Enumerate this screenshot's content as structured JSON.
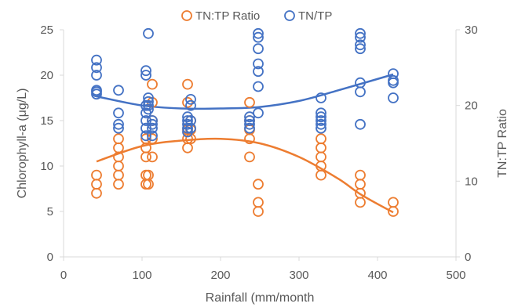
{
  "chart_data": {
    "type": "scatter",
    "xlabel": "Rainfall (mm/month",
    "ylabel": "Chlorophyll-a (μg/L)",
    "y2label": "TN:TP Ratio",
    "xlim": [
      0,
      500
    ],
    "ylim": [
      0,
      25
    ],
    "y2lim": [
      0,
      30
    ],
    "xticks": [
      "0",
      "100",
      "200",
      "300",
      "400",
      "500"
    ],
    "yticks": [
      "0",
      "5",
      "10",
      "15",
      "20",
      "25"
    ],
    "y2ticks": [
      "0",
      "10",
      "20",
      "30"
    ],
    "grid": false,
    "legend_position": "top",
    "series": [
      {
        "name": "TN:TP Ratio",
        "axis": "left",
        "color": "#ED7D31",
        "marker": "hollow-circle",
        "trendline": "polynomial",
        "trend_points": [
          [
            42,
            10.5
          ],
          [
            100,
            12.2
          ],
          [
            150,
            12.8
          ],
          [
            200,
            13.0
          ],
          [
            250,
            12.5
          ],
          [
            300,
            11.0
          ],
          [
            350,
            8.6
          ],
          [
            380,
            6.8
          ],
          [
            420,
            4.9
          ]
        ],
        "points": [
          [
            42,
            7
          ],
          [
            42,
            8
          ],
          [
            42,
            9
          ],
          [
            70,
            8
          ],
          [
            70,
            9
          ],
          [
            70,
            10
          ],
          [
            70,
            11
          ],
          [
            70,
            12
          ],
          [
            70,
            13
          ],
          [
            105,
            8
          ],
          [
            105,
            9
          ],
          [
            105,
            11
          ],
          [
            105,
            12
          ],
          [
            105,
            13
          ],
          [
            108,
            8
          ],
          [
            108,
            9
          ],
          [
            113,
            11
          ],
          [
            113,
            13
          ],
          [
            113,
            15
          ],
          [
            113,
            17
          ],
          [
            113,
            19
          ],
          [
            158,
            12
          ],
          [
            158,
            13
          ],
          [
            158,
            14
          ],
          [
            158,
            17
          ],
          [
            158,
            19
          ],
          [
            162,
            13
          ],
          [
            162,
            14
          ],
          [
            162,
            15
          ],
          [
            237,
            11
          ],
          [
            237,
            13
          ],
          [
            237,
            14
          ],
          [
            237,
            15
          ],
          [
            237,
            17
          ],
          [
            248,
            5
          ],
          [
            248,
            6
          ],
          [
            248,
            8
          ],
          [
            328,
            9
          ],
          [
            328,
            10
          ],
          [
            328,
            11
          ],
          [
            328,
            12
          ],
          [
            328,
            13
          ],
          [
            378,
            6
          ],
          [
            378,
            7
          ],
          [
            378,
            8
          ],
          [
            378,
            9
          ],
          [
            420,
            5
          ],
          [
            420,
            6
          ]
        ]
      },
      {
        "name": "TN/TP",
        "axis": "right",
        "color": "#4472C4",
        "marker": "hollow-circle",
        "trendline": "polynomial",
        "trend_points": [
          [
            42,
            21.2
          ],
          [
            100,
            20.0
          ],
          [
            150,
            19.6
          ],
          [
            200,
            19.6
          ],
          [
            250,
            19.8
          ],
          [
            300,
            20.6
          ],
          [
            350,
            22.0
          ],
          [
            420,
            24.1
          ]
        ],
        "points": [
          [
            42,
            21.5
          ],
          [
            42,
            21.8
          ],
          [
            42,
            22.0
          ],
          [
            42,
            24.0
          ],
          [
            42,
            25.0
          ],
          [
            42,
            26.0
          ],
          [
            70,
            17.0
          ],
          [
            70,
            17.5
          ],
          [
            70,
            19.0
          ],
          [
            70,
            22.0
          ],
          [
            105,
            16.0
          ],
          [
            105,
            17.0
          ],
          [
            105,
            18.0
          ],
          [
            105,
            19.0
          ],
          [
            105,
            20.0
          ],
          [
            105,
            24.0
          ],
          [
            105,
            24.6
          ],
          [
            108,
            19.5
          ],
          [
            108,
            20.0
          ],
          [
            108,
            20.5
          ],
          [
            108,
            21.0
          ],
          [
            108,
            29.5
          ],
          [
            113,
            16.0
          ],
          [
            113,
            17.0
          ],
          [
            113,
            17.5
          ],
          [
            113,
            18.0
          ],
          [
            158,
            16.5
          ],
          [
            158,
            17.0
          ],
          [
            158,
            17.5
          ],
          [
            158,
            18.0
          ],
          [
            158,
            18.5
          ],
          [
            162,
            17.0
          ],
          [
            162,
            18.0
          ],
          [
            162,
            20.0
          ],
          [
            162,
            20.8
          ],
          [
            237,
            17.0
          ],
          [
            237,
            17.5
          ],
          [
            237,
            18.0
          ],
          [
            237,
            18.5
          ],
          [
            248,
            19.0
          ],
          [
            248,
            22.5
          ],
          [
            248,
            24.5
          ],
          [
            248,
            25.5
          ],
          [
            248,
            27.5
          ],
          [
            248,
            29.0
          ],
          [
            248,
            29.5
          ],
          [
            328,
            17.0
          ],
          [
            328,
            17.5
          ],
          [
            328,
            18.0
          ],
          [
            328,
            18.5
          ],
          [
            328,
            19.0
          ],
          [
            328,
            21.0
          ],
          [
            378,
            17.5
          ],
          [
            378,
            21.8
          ],
          [
            378,
            23.0
          ],
          [
            378,
            27.5
          ],
          [
            378,
            28.0
          ],
          [
            378,
            29.0
          ],
          [
            378,
            29.5
          ],
          [
            420,
            21.0
          ],
          [
            420,
            23.0
          ],
          [
            420,
            23.3
          ],
          [
            420,
            24.2
          ]
        ]
      }
    ]
  }
}
